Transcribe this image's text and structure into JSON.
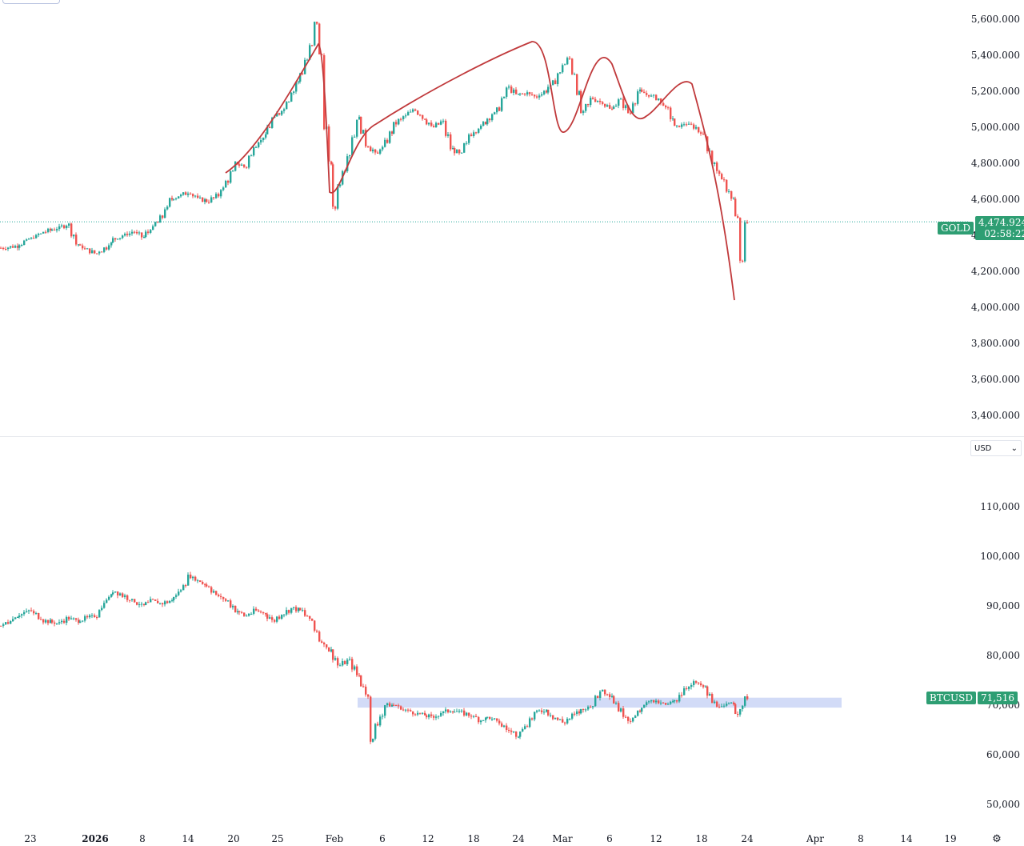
{
  "chart_data": [
    {
      "type": "candlestick",
      "symbol": "GOLD",
      "last_price": "4,474.924",
      "countdown": "02:58:22",
      "ylim": [
        3300,
        5700
      ],
      "y_ticks": [
        "5,600.000",
        "5,400.000",
        "5,200.000",
        "5,000.000",
        "4,800.000",
        "4,600.000",
        "4,400.000",
        "4,200.000",
        "4,000.000",
        "3,800.000",
        "3,600.000",
        "3,400.000"
      ],
      "y_tick_values": [
        5600,
        5400,
        5200,
        5000,
        4800,
        4600,
        4400,
        4200,
        4000,
        3800,
        3600,
        3400
      ],
      "close_path": [
        [
          0,
          4330
        ],
        [
          3,
          4340
        ],
        [
          6,
          4380
        ],
        [
          9,
          4420
        ],
        [
          12,
          4440
        ],
        [
          14,
          4460
        ],
        [
          16,
          4350
        ],
        [
          18,
          4320
        ],
        [
          20,
          4300
        ],
        [
          22,
          4330
        ],
        [
          24,
          4380
        ],
        [
          26,
          4400
        ],
        [
          28,
          4420
        ],
        [
          30,
          4390
        ],
        [
          32,
          4440
        ],
        [
          34,
          4500
        ],
        [
          36,
          4600
        ],
        [
          38,
          4620
        ],
        [
          40,
          4640
        ],
        [
          42,
          4600
        ],
        [
          44,
          4590
        ],
        [
          46,
          4620
        ],
        [
          48,
          4700
        ],
        [
          50,
          4800
        ],
        [
          52,
          4780
        ],
        [
          54,
          4900
        ],
        [
          56,
          4950
        ],
        [
          58,
          5050
        ],
        [
          60,
          5100
        ],
        [
          62,
          5200
        ],
        [
          64,
          5300
        ],
        [
          66,
          5450
        ],
        [
          67,
          5580
        ],
        [
          68,
          5400
        ],
        [
          69,
          5000
        ],
        [
          70,
          4800
        ],
        [
          71,
          4550
        ],
        [
          72,
          4680
        ],
        [
          74,
          4850
        ],
        [
          76,
          5050
        ],
        [
          78,
          4900
        ],
        [
          80,
          4850
        ],
        [
          82,
          4920
        ],
        [
          84,
          5020
        ],
        [
          86,
          5060
        ],
        [
          88,
          5100
        ],
        [
          90,
          5050
        ],
        [
          92,
          5000
        ],
        [
          94,
          5030
        ],
        [
          96,
          4880
        ],
        [
          98,
          4850
        ],
        [
          100,
          4960
        ],
        [
          102,
          5000
        ],
        [
          104,
          5050
        ],
        [
          106,
          5100
        ],
        [
          108,
          5220
        ],
        [
          110,
          5180
        ],
        [
          112,
          5190
        ],
        [
          114,
          5170
        ],
        [
          116,
          5200
        ],
        [
          118,
          5250
        ],
        [
          120,
          5350
        ],
        [
          121,
          5380
        ],
        [
          122,
          5300
        ],
        [
          124,
          5080
        ],
        [
          126,
          5160
        ],
        [
          128,
          5140
        ],
        [
          130,
          5100
        ],
        [
          132,
          5150
        ],
        [
          134,
          5080
        ],
        [
          136,
          5200
        ],
        [
          138,
          5180
        ],
        [
          140,
          5160
        ],
        [
          142,
          5100
        ],
        [
          144,
          5000
        ],
        [
          146,
          5020
        ],
        [
          148,
          5000
        ],
        [
          150,
          4950
        ],
        [
          152,
          4800
        ],
        [
          154,
          4700
        ],
        [
          156,
          4600
        ],
        [
          157,
          4500
        ],
        [
          158,
          4250
        ],
        [
          159,
          4475
        ]
      ],
      "annotation": "hand-drawn red line",
      "annotation_color": "#c0393b"
    },
    {
      "type": "candlestick",
      "symbol": "BTCUSD",
      "last_price": "71,516",
      "currency": "USD",
      "ylim": [
        45000,
        115000
      ],
      "y_ticks": [
        "110,000",
        "100,000",
        "90,000",
        "80,000",
        "70,000",
        "60,000",
        "50,000"
      ],
      "y_tick_values": [
        110000,
        100000,
        90000,
        80000,
        70000,
        60000,
        50000
      ],
      "close_path": [
        [
          0,
          86000
        ],
        [
          3,
          88000
        ],
        [
          6,
          89000
        ],
        [
          9,
          87000
        ],
        [
          12,
          86500
        ],
        [
          14,
          87500
        ],
        [
          16,
          87000
        ],
        [
          18,
          87500
        ],
        [
          20,
          88000
        ],
        [
          22,
          91000
        ],
        [
          24,
          93000
        ],
        [
          26,
          92000
        ],
        [
          28,
          91000
        ],
        [
          30,
          90000
        ],
        [
          32,
          91000
        ],
        [
          34,
          90500
        ],
        [
          36,
          91000
        ],
        [
          38,
          93000
        ],
        [
          40,
          96000
        ],
        [
          42,
          95000
        ],
        [
          44,
          94000
        ],
        [
          46,
          92000
        ],
        [
          48,
          91000
        ],
        [
          50,
          89000
        ],
        [
          52,
          88000
        ],
        [
          54,
          89000
        ],
        [
          56,
          88500
        ],
        [
          58,
          87000
        ],
        [
          60,
          88500
        ],
        [
          62,
          89500
        ],
        [
          64,
          89000
        ],
        [
          66,
          87000
        ],
        [
          68,
          83000
        ],
        [
          70,
          81000
        ],
        [
          72,
          78000
        ],
        [
          74,
          79000
        ],
        [
          76,
          76000
        ],
        [
          78,
          72000
        ],
        [
          79,
          63000
        ],
        [
          80,
          66000
        ],
        [
          82,
          70000
        ],
        [
          84,
          70000
        ],
        [
          86,
          69000
        ],
        [
          88,
          68500
        ],
        [
          90,
          68000
        ],
        [
          92,
          67500
        ],
        [
          94,
          68500
        ],
        [
          96,
          69000
        ],
        [
          98,
          68500
        ],
        [
          100,
          68000
        ],
        [
          102,
          67000
        ],
        [
          104,
          67500
        ],
        [
          106,
          66500
        ],
        [
          108,
          65000
        ],
        [
          110,
          64000
        ],
        [
          112,
          66000
        ],
        [
          114,
          68500
        ],
        [
          116,
          69000
        ],
        [
          118,
          67500
        ],
        [
          120,
          66500
        ],
        [
          122,
          68000
        ],
        [
          124,
          69000
        ],
        [
          126,
          70000
        ],
        [
          128,
          73000
        ],
        [
          130,
          72000
        ],
        [
          132,
          69000
        ],
        [
          134,
          67000
        ],
        [
          136,
          68500
        ],
        [
          138,
          71000
        ],
        [
          140,
          70500
        ],
        [
          142,
          70000
        ],
        [
          144,
          71000
        ],
        [
          146,
          73500
        ],
        [
          148,
          74500
        ],
        [
          150,
          73500
        ],
        [
          152,
          70500
        ],
        [
          154,
          69500
        ],
        [
          156,
          70500
        ],
        [
          157,
          68500
        ],
        [
          158,
          69500
        ],
        [
          159,
          71516
        ]
      ],
      "zone_low": 69500,
      "zone_high": 71500,
      "zone_color": "#c7d2f5"
    }
  ],
  "x_axis": {
    "labels": [
      "23",
      "2026",
      "8",
      "14",
      "20",
      "25",
      "Feb",
      "6",
      "12",
      "18",
      "24",
      "Mar",
      "6",
      "12",
      "18",
      "24",
      "Apr",
      "8",
      "14",
      "19"
    ],
    "bold": [
      false,
      true,
      false,
      false,
      false,
      false,
      false,
      false,
      false,
      false,
      false,
      false,
      false,
      false,
      false,
      false,
      false,
      false,
      false,
      false
    ]
  },
  "colors": {
    "up": "#26a69a",
    "down": "#ef5350",
    "tag": "#2e9e73"
  },
  "usd_select": "USD",
  "settings_icon": "settings-icon"
}
